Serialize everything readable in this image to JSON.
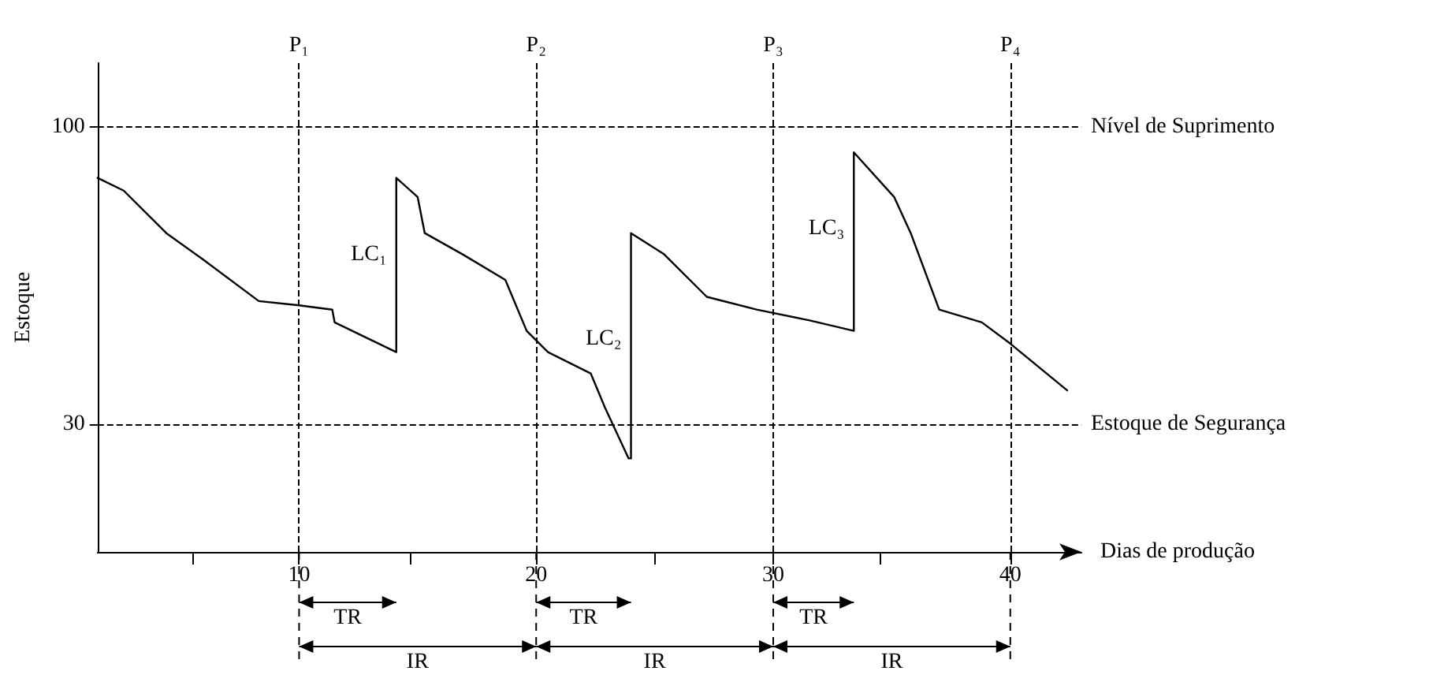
{
  "chart_data": {
    "type": "line",
    "xlabel": "Dias de produção",
    "ylabel": "Estoque",
    "xlim": [
      1.5,
      43
    ],
    "ylim": [
      0,
      115
    ],
    "xticks": [
      {
        "value": 5.5,
        "label": null
      },
      10,
      {
        "value": 14.7,
        "label": null
      },
      20,
      {
        "value": 25,
        "label": null
      },
      30,
      {
        "value": 34.5,
        "label": null
      },
      40
    ],
    "yticks": [
      30,
      100
    ],
    "grid": false,
    "marker": "none",
    "line_style": "solid",
    "series": [
      {
        "color": "#000000",
        "x": [
          1.5,
          2.6,
          4.4,
          5.9,
          8.3,
          10,
          11.4,
          11.5,
          14.1,
          14.1,
          15,
          15.3,
          16.9,
          18.7,
          19.6,
          20.5,
          22.3,
          22.9,
          23.9,
          24,
          24,
          25.4,
          27.2,
          29.3,
          31.5,
          33.4,
          33.4,
          35.1,
          35.8,
          37,
          38.8,
          40,
          42.4
        ],
        "values": [
          88,
          85,
          75,
          69,
          59,
          58,
          57,
          54,
          47,
          88,
          83.5,
          75,
          70,
          64,
          52,
          47,
          42,
          34,
          22,
          22,
          75,
          70,
          60,
          57,
          54.5,
          52,
          94,
          83.5,
          75,
          57,
          54,
          49,
          38
        ]
      }
    ],
    "ref_lines": [
      {
        "axis": "x",
        "value": 10,
        "label": "P₁",
        "line_style": "dashed"
      },
      {
        "axis": "x",
        "value": 20,
        "label": "P₂",
        "line_style": "dashed"
      },
      {
        "axis": "x",
        "value": 30,
        "label": "P₃",
        "line_style": "dashed"
      },
      {
        "axis": "x",
        "value": 40,
        "label": "P₄",
        "line_style": "dashed"
      },
      {
        "axis": "y",
        "value": 100,
        "label": "Nível de Suprimento",
        "line_style": "dashed"
      },
      {
        "axis": "y",
        "value": 30,
        "label": "Estoque de Segurança",
        "line_style": "dashed"
      }
    ],
    "annotations": [
      {
        "text": "LC₁",
        "x": 14.1,
        "y": 70
      },
      {
        "text": "LC₂",
        "x": 24,
        "y": 50
      },
      {
        "text": "LC₃",
        "x": 33.4,
        "y": 76
      },
      "TR",
      "TR",
      "TR",
      "IR",
      "IR",
      "IR"
    ]
  }
}
